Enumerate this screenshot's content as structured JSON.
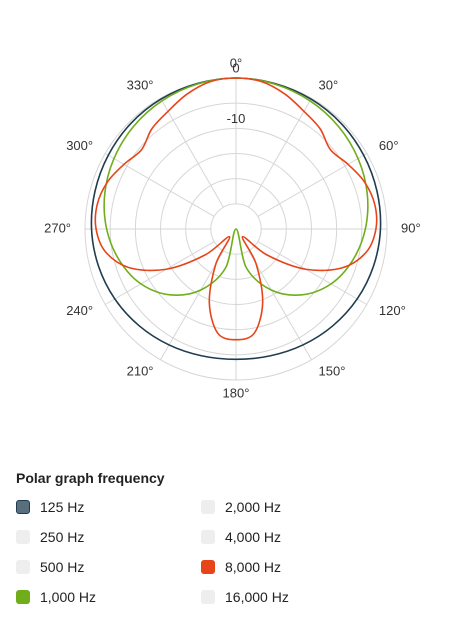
{
  "chart_data": {
    "type": "polar",
    "title": "",
    "angle_ticks": [
      "0°",
      "30°",
      "60°",
      "90°",
      "120°",
      "150°",
      "180°",
      "210°",
      "240°",
      "270°",
      "300°",
      "330°"
    ],
    "radial_ticks": [
      {
        "value": 0,
        "label": "0"
      },
      {
        "value": -10,
        "label": "-10"
      }
    ],
    "radial_range_db": [
      -30,
      0
    ],
    "grid": true,
    "legend_title": "Polar graph frequency",
    "legend_placement": "bottom",
    "series": [
      {
        "name": "125 Hz",
        "active": true,
        "color": "#1f3d4f",
        "swatch": "#5a6f7d",
        "angles": [
          0,
          15,
          30,
          45,
          60,
          75,
          90,
          105,
          120,
          135,
          150,
          165,
          180,
          195,
          210,
          225,
          240,
          255,
          270,
          285,
          300,
          315,
          330,
          345
        ],
        "values_db": [
          0,
          -0.1,
          -0.2,
          -0.4,
          -0.7,
          -1.0,
          -1.3,
          -1.7,
          -2.2,
          -2.8,
          -3.4,
          -3.9,
          -4.1,
          -3.9,
          -3.4,
          -2.8,
          -2.2,
          -1.7,
          -1.3,
          -1.0,
          -0.7,
          -0.4,
          -0.2,
          -0.1
        ]
      },
      {
        "name": "250 Hz",
        "active": false,
        "color": "#eeeeee",
        "swatch": "#eeeeee"
      },
      {
        "name": "500 Hz",
        "active": false,
        "color": "#eeeeee",
        "swatch": "#eeeeee"
      },
      {
        "name": "1,000 Hz",
        "active": true,
        "color": "#6fae1a",
        "swatch": "#6fae1a",
        "angles": [
          0,
          15,
          30,
          45,
          60,
          75,
          90,
          105,
          120,
          135,
          150,
          165,
          180,
          195,
          210,
          225,
          240,
          255,
          270,
          285,
          300,
          315,
          330,
          345
        ],
        "values_db": [
          0,
          -0.2,
          -0.6,
          -1.2,
          -2.0,
          -3.0,
          -4.3,
          -6.0,
          -8.2,
          -11.5,
          -16.0,
          -22.0,
          -30.0,
          -22.0,
          -16.0,
          -11.5,
          -8.2,
          -6.0,
          -4.3,
          -3.0,
          -2.0,
          -1.2,
          -0.6,
          -0.2
        ]
      },
      {
        "name": "2,000 Hz",
        "active": false,
        "color": "#eeeeee",
        "swatch": "#eeeeee"
      },
      {
        "name": "4,000 Hz",
        "active": false,
        "color": "#eeeeee",
        "swatch": "#eeeeee"
      },
      {
        "name": "8,000 Hz",
        "active": true,
        "color": "#e8441a",
        "swatch": "#e8441a",
        "angles": [
          0,
          10,
          20,
          30,
          40,
          50,
          60,
          70,
          80,
          90,
          100,
          110,
          120,
          130,
          140,
          150,
          160,
          170,
          180,
          190,
          200,
          210,
          220,
          230,
          240,
          250,
          260,
          270,
          280,
          290,
          300,
          310,
          320,
          330,
          340,
          350
        ],
        "values_db": [
          0,
          -0.3,
          -1.5,
          -3.0,
          -4.0,
          -5.5,
          -4.3,
          -2.8,
          -2.0,
          -2.2,
          -3.7,
          -7.5,
          -14.0,
          -22.0,
          -28.0,
          -22.0,
          -14.5,
          -9.0,
          -8.0,
          -9.0,
          -14.5,
          -22.0,
          -28.0,
          -22.0,
          -14.0,
          -7.5,
          -3.7,
          -2.2,
          -2.0,
          -2.8,
          -4.3,
          -5.5,
          -4.0,
          -3.0,
          -1.5,
          -0.3
        ]
      },
      {
        "name": "16,000 Hz",
        "active": false,
        "color": "#eeeeee",
        "swatch": "#eeeeee"
      }
    ]
  }
}
